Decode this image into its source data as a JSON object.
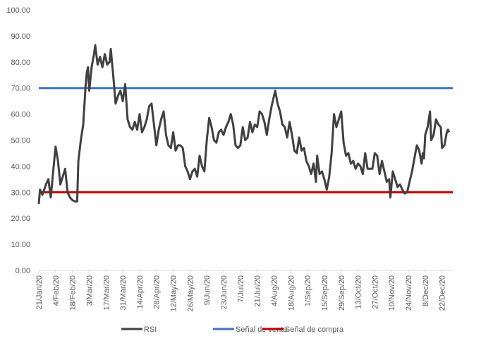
{
  "chart_data": {
    "type": "line",
    "title": "",
    "xlabel": "",
    "ylabel": "",
    "ylim": [
      0,
      100
    ],
    "y_ticks": [
      "0.00",
      "10.00",
      "20.00",
      "30.00",
      "40.00",
      "50.00",
      "60.00",
      "70.00",
      "80.00",
      "90.00",
      "100.00"
    ],
    "x_tick_labels": [
      "21/Jan/20",
      "4/Feb/20",
      "18/Feb/20",
      "3/Mar/20",
      "17/Mar/20",
      "31/Mar/20",
      "14/Apr/20",
      "28/Apr/20",
      "12/May/20",
      "26/May/20",
      "9/Jun/20",
      "23/Jun/20",
      "7/Jul/20",
      "21/Jul/20",
      "4/Aug/20",
      "18/Aug/20",
      "1/Sep/20",
      "15/Sep/20",
      "29/Sep/20",
      "13/Oct/20",
      "27/Oct/20",
      "10/Nov/20",
      "24/Nov/20",
      "8/Dec/20",
      "22/Dec/20"
    ],
    "x_range": [
      "2020-01-21",
      "2020-12-31"
    ],
    "grid": false,
    "legend_position": "bottom",
    "series": [
      {
        "name": "RSI",
        "color": "#404040",
        "points": [
          [
            "2020-01-21",
            25.5
          ],
          [
            "2020-01-22",
            31.0
          ],
          [
            "2020-01-24",
            29.0
          ],
          [
            "2020-01-27",
            33.0
          ],
          [
            "2020-01-29",
            35.0
          ],
          [
            "2020-01-31",
            28.0
          ],
          [
            "2020-02-02",
            38.0
          ],
          [
            "2020-02-04",
            47.5
          ],
          [
            "2020-02-06",
            42.0
          ],
          [
            "2020-02-08",
            33.0
          ],
          [
            "2020-02-10",
            36.0
          ],
          [
            "2020-02-12",
            39.0
          ],
          [
            "2020-02-14",
            30.0
          ],
          [
            "2020-02-16",
            28.0
          ],
          [
            "2020-02-18",
            27.0
          ],
          [
            "2020-02-20",
            26.5
          ],
          [
            "2020-02-22",
            26.5
          ],
          [
            "2020-02-23",
            42.0
          ],
          [
            "2020-02-25",
            50.0
          ],
          [
            "2020-02-27",
            56.0
          ],
          [
            "2020-02-29",
            71.0
          ],
          [
            "2020-03-01",
            76.0
          ],
          [
            "2020-03-02",
            78.0
          ],
          [
            "2020-03-03",
            69.0
          ],
          [
            "2020-03-05",
            78.0
          ],
          [
            "2020-03-07",
            83.0
          ],
          [
            "2020-03-08",
            86.5
          ],
          [
            "2020-03-10",
            79.0
          ],
          [
            "2020-03-12",
            82.0
          ],
          [
            "2020-03-14",
            78.0
          ],
          [
            "2020-03-16",
            83.0
          ],
          [
            "2020-03-18",
            79.0
          ],
          [
            "2020-03-20",
            80.0
          ],
          [
            "2020-03-21",
            85.0
          ],
          [
            "2020-03-23",
            75.0
          ],
          [
            "2020-03-25",
            64.0
          ],
          [
            "2020-03-27",
            67.0
          ],
          [
            "2020-03-29",
            69.0
          ],
          [
            "2020-03-31",
            65.0
          ],
          [
            "2020-04-02",
            71.5
          ],
          [
            "2020-04-04",
            58.0
          ],
          [
            "2020-04-06",
            55.0
          ],
          [
            "2020-04-08",
            54.0
          ],
          [
            "2020-04-10",
            57.0
          ],
          [
            "2020-04-12",
            54.0
          ],
          [
            "2020-04-14",
            60.0
          ],
          [
            "2020-04-16",
            53.0
          ],
          [
            "2020-04-18",
            55.0
          ],
          [
            "2020-04-20",
            58.0
          ],
          [
            "2020-04-22",
            63.0
          ],
          [
            "2020-04-24",
            64.0
          ],
          [
            "2020-04-26",
            56.0
          ],
          [
            "2020-04-28",
            48.0
          ],
          [
            "2020-04-30",
            54.0
          ],
          [
            "2020-05-02",
            58.0
          ],
          [
            "2020-05-04",
            61.0
          ],
          [
            "2020-05-06",
            52.0
          ],
          [
            "2020-05-08",
            48.0
          ],
          [
            "2020-05-10",
            47.0
          ],
          [
            "2020-05-12",
            53.0
          ],
          [
            "2020-05-14",
            46.0
          ],
          [
            "2020-05-16",
            48.0
          ],
          [
            "2020-05-18",
            48.0
          ],
          [
            "2020-05-20",
            47.0
          ],
          [
            "2020-05-22",
            40.0
          ],
          [
            "2020-05-24",
            38.0
          ],
          [
            "2020-05-26",
            35.0
          ],
          [
            "2020-05-28",
            38.0
          ],
          [
            "2020-05-30",
            39.0
          ],
          [
            "2020-06-01",
            36.0
          ],
          [
            "2020-06-03",
            44.0
          ],
          [
            "2020-06-05",
            40.0
          ],
          [
            "2020-06-07",
            38.0
          ],
          [
            "2020-06-09",
            50.0
          ],
          [
            "2020-06-11",
            58.5
          ],
          [
            "2020-06-13",
            55.0
          ],
          [
            "2020-06-15",
            50.0
          ],
          [
            "2020-06-17",
            49.0
          ],
          [
            "2020-06-19",
            53.0
          ],
          [
            "2020-06-21",
            54.0
          ],
          [
            "2020-06-23",
            52.0
          ],
          [
            "2020-06-25",
            55.0
          ],
          [
            "2020-06-27",
            57.0
          ],
          [
            "2020-06-29",
            60.0
          ],
          [
            "2020-07-01",
            56.0
          ],
          [
            "2020-07-03",
            48.0
          ],
          [
            "2020-07-05",
            47.0
          ],
          [
            "2020-07-07",
            48.0
          ],
          [
            "2020-07-09",
            55.0
          ],
          [
            "2020-07-11",
            50.0
          ],
          [
            "2020-07-13",
            51.0
          ],
          [
            "2020-07-15",
            57.0
          ],
          [
            "2020-07-17",
            53.0
          ],
          [
            "2020-07-19",
            56.0
          ],
          [
            "2020-07-21",
            55.0
          ],
          [
            "2020-07-23",
            61.0
          ],
          [
            "2020-07-25",
            60.0
          ],
          [
            "2020-07-27",
            57.0
          ],
          [
            "2020-07-29",
            52.0
          ],
          [
            "2020-07-31",
            58.0
          ],
          [
            "2020-08-02",
            63.0
          ],
          [
            "2020-08-04",
            67.0
          ],
          [
            "2020-08-05",
            69.0
          ],
          [
            "2020-08-07",
            64.0
          ],
          [
            "2020-08-09",
            61.0
          ],
          [
            "2020-08-11",
            56.0
          ],
          [
            "2020-08-13",
            55.0
          ],
          [
            "2020-08-15",
            51.0
          ],
          [
            "2020-08-17",
            57.0
          ],
          [
            "2020-08-19",
            52.0
          ],
          [
            "2020-08-21",
            46.0
          ],
          [
            "2020-08-23",
            45.0
          ],
          [
            "2020-08-25",
            51.0
          ],
          [
            "2020-08-27",
            46.0
          ],
          [
            "2020-08-29",
            47.0
          ],
          [
            "2020-08-31",
            42.0
          ],
          [
            "2020-09-02",
            40.0
          ],
          [
            "2020-09-04",
            37.0
          ],
          [
            "2020-09-06",
            41.0
          ],
          [
            "2020-09-08",
            34.0
          ],
          [
            "2020-09-09",
            44.0
          ],
          [
            "2020-09-11",
            37.0
          ],
          [
            "2020-09-13",
            38.0
          ],
          [
            "2020-09-15",
            35.0
          ],
          [
            "2020-09-17",
            31.0
          ],
          [
            "2020-09-19",
            36.0
          ],
          [
            "2020-09-21",
            45.0
          ],
          [
            "2020-09-23",
            60.0
          ],
          [
            "2020-09-25",
            55.0
          ],
          [
            "2020-09-27",
            58.0
          ],
          [
            "2020-09-29",
            61.0
          ],
          [
            "2020-10-01",
            49.0
          ],
          [
            "2020-10-03",
            44.0
          ],
          [
            "2020-10-05",
            45.0
          ],
          [
            "2020-10-07",
            41.0
          ],
          [
            "2020-10-09",
            42.0
          ],
          [
            "2020-10-11",
            39.0
          ],
          [
            "2020-10-13",
            41.0
          ],
          [
            "2020-10-15",
            40.0
          ],
          [
            "2020-10-17",
            37.0
          ],
          [
            "2020-10-19",
            45.0
          ],
          [
            "2020-10-21",
            39.0
          ],
          [
            "2020-10-23",
            39.0
          ],
          [
            "2020-10-25",
            39.0
          ],
          [
            "2020-10-27",
            45.0
          ],
          [
            "2020-10-29",
            44.0
          ],
          [
            "2020-10-31",
            37.0
          ],
          [
            "2020-11-02",
            42.0
          ],
          [
            "2020-11-04",
            38.0
          ],
          [
            "2020-11-06",
            34.0
          ],
          [
            "2020-11-08",
            35.0
          ],
          [
            "2020-11-09",
            28.0
          ],
          [
            "2020-11-11",
            38.0
          ],
          [
            "2020-11-13",
            35.0
          ],
          [
            "2020-11-15",
            32.0
          ],
          [
            "2020-11-17",
            33.0
          ],
          [
            "2020-11-19",
            31.0
          ],
          [
            "2020-11-21",
            29.5
          ],
          [
            "2020-11-23",
            30.0
          ],
          [
            "2020-11-25",
            34.0
          ],
          [
            "2020-11-27",
            38.0
          ],
          [
            "2020-11-29",
            43.0
          ],
          [
            "2020-12-01",
            48.0
          ],
          [
            "2020-12-03",
            46.0
          ],
          [
            "2020-12-05",
            41.0
          ],
          [
            "2020-12-06",
            45.0
          ],
          [
            "2020-12-07",
            43.0
          ],
          [
            "2020-12-08",
            52.0
          ],
          [
            "2020-12-10",
            55.0
          ],
          [
            "2020-12-12",
            61.0
          ],
          [
            "2020-12-13",
            50.0
          ],
          [
            "2020-12-15",
            52.0
          ],
          [
            "2020-12-17",
            58.0
          ],
          [
            "2020-12-19",
            56.0
          ],
          [
            "2020-12-21",
            55.0
          ],
          [
            "2020-12-22",
            47.0
          ],
          [
            "2020-12-24",
            48.0
          ],
          [
            "2020-12-26",
            53.0
          ],
          [
            "2020-12-27",
            54.0
          ],
          [
            "2020-12-28",
            53.0
          ]
        ]
      },
      {
        "name": "Señal de venta",
        "color": "#4472C4",
        "constant": 70
      },
      {
        "name": "Señal de compra",
        "color": "#C00000",
        "constant": 30
      }
    ]
  }
}
